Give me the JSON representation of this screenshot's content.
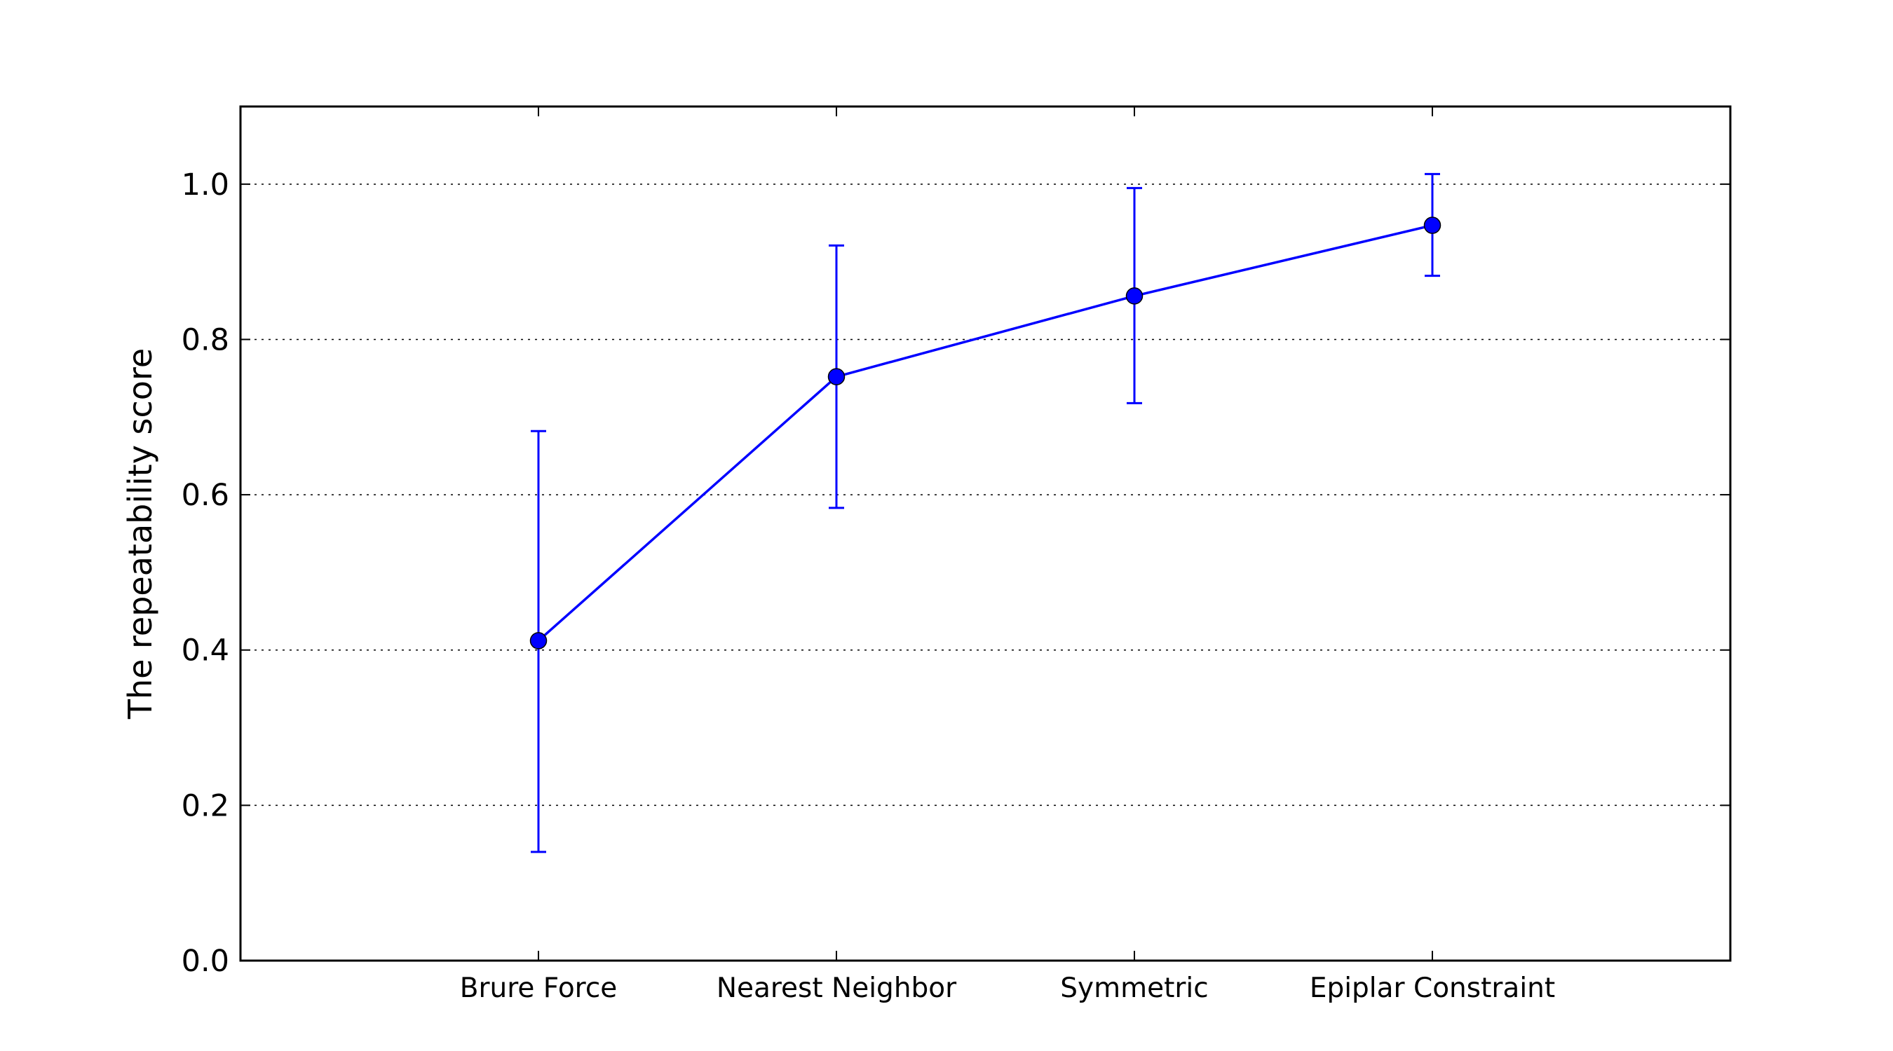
{
  "chart_data": {
    "type": "line",
    "title": "",
    "xlabel": "",
    "ylabel": "The repeatability score",
    "categories": [
      "Brure Force",
      "Nearest Neighbor",
      "Symmetric",
      "Epiplar Constraint"
    ],
    "series": [
      {
        "values": [
          0.412,
          0.752,
          0.856,
          0.947
        ],
        "error_low": [
          0.14,
          0.583,
          0.718,
          0.882
        ],
        "error_high": [
          0.682,
          0.921,
          0.995,
          1.013
        ],
        "color": "#0000ff",
        "marker": "circle"
      }
    ],
    "ylim": [
      0.0,
      1.1
    ],
    "yticks": [
      0.0,
      0.2,
      0.4,
      0.6,
      0.8,
      1.0
    ],
    "ytick_labels": [
      "0.0",
      "0.2",
      "0.4",
      "0.6",
      "0.8",
      "1.0"
    ],
    "grid": "y-dotted",
    "legend": "none"
  }
}
